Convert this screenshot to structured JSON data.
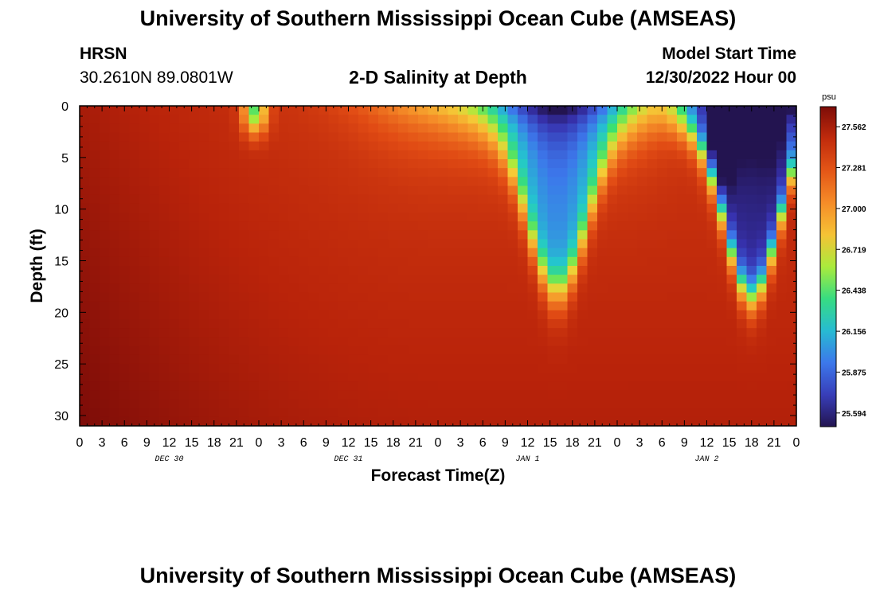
{
  "header": {
    "title": "University of Southern Mississippi Ocean Cube (AMSEAS)",
    "station": "HRSN",
    "coords": "30.2610N  89.0801W",
    "plot_title": "2-D Salinity at Depth",
    "start_label": "Model Start Time",
    "start_value": "12/30/2022 Hour 00"
  },
  "footer": {
    "title": "University of Southern Mississippi Ocean Cube (AMSEAS)"
  },
  "chart_data": {
    "type": "heatmap",
    "title": "2-D Salinity at Depth",
    "xlabel": "Forecast Time(Z)",
    "ylabel": "Depth (ft)",
    "x_range_hours": [
      0,
      96
    ],
    "y_range_ft": [
      0,
      31
    ],
    "y_inverted": true,
    "x_ticks": [
      "0",
      "3",
      "6",
      "9",
      "12",
      "15",
      "18",
      "21",
      "0",
      "3",
      "6",
      "9",
      "12",
      "15",
      "18",
      "21",
      "0",
      "3",
      "6",
      "9",
      "12",
      "15",
      "18",
      "21",
      "0",
      "3",
      "6",
      "9",
      "12",
      "15",
      "18",
      "21",
      "0"
    ],
    "y_ticks": [
      0,
      5,
      10,
      15,
      20,
      25,
      30
    ],
    "day_labels": [
      {
        "text": "DEC 30",
        "hour": 12
      },
      {
        "text": "DEC 31",
        "hour": 36
      },
      {
        "text": "JAN 1",
        "hour": 60
      },
      {
        "text": "JAN 2",
        "hour": 84
      }
    ],
    "colorbar": {
      "unit": "psu",
      "min": 25.5,
      "max": 27.7,
      "ticks": [
        "27.562",
        "27.281",
        "27.000",
        "26.719",
        "26.438",
        "26.156",
        "25.875",
        "25.594"
      ]
    },
    "value_range": [
      25.5,
      27.7
    ],
    "features": [
      {
        "description": "fresh surface intrusion",
        "hour": 23.5,
        "depth_ft": 1.5,
        "salinity": 26.4
      },
      {
        "description": "surface freshening trough",
        "hour": 66,
        "depth_ft": 6,
        "salinity": 25.85
      },
      {
        "description": "deep freshening plume",
        "hour": 88,
        "depth_ft": 10,
        "salinity": 25.6
      }
    ]
  }
}
